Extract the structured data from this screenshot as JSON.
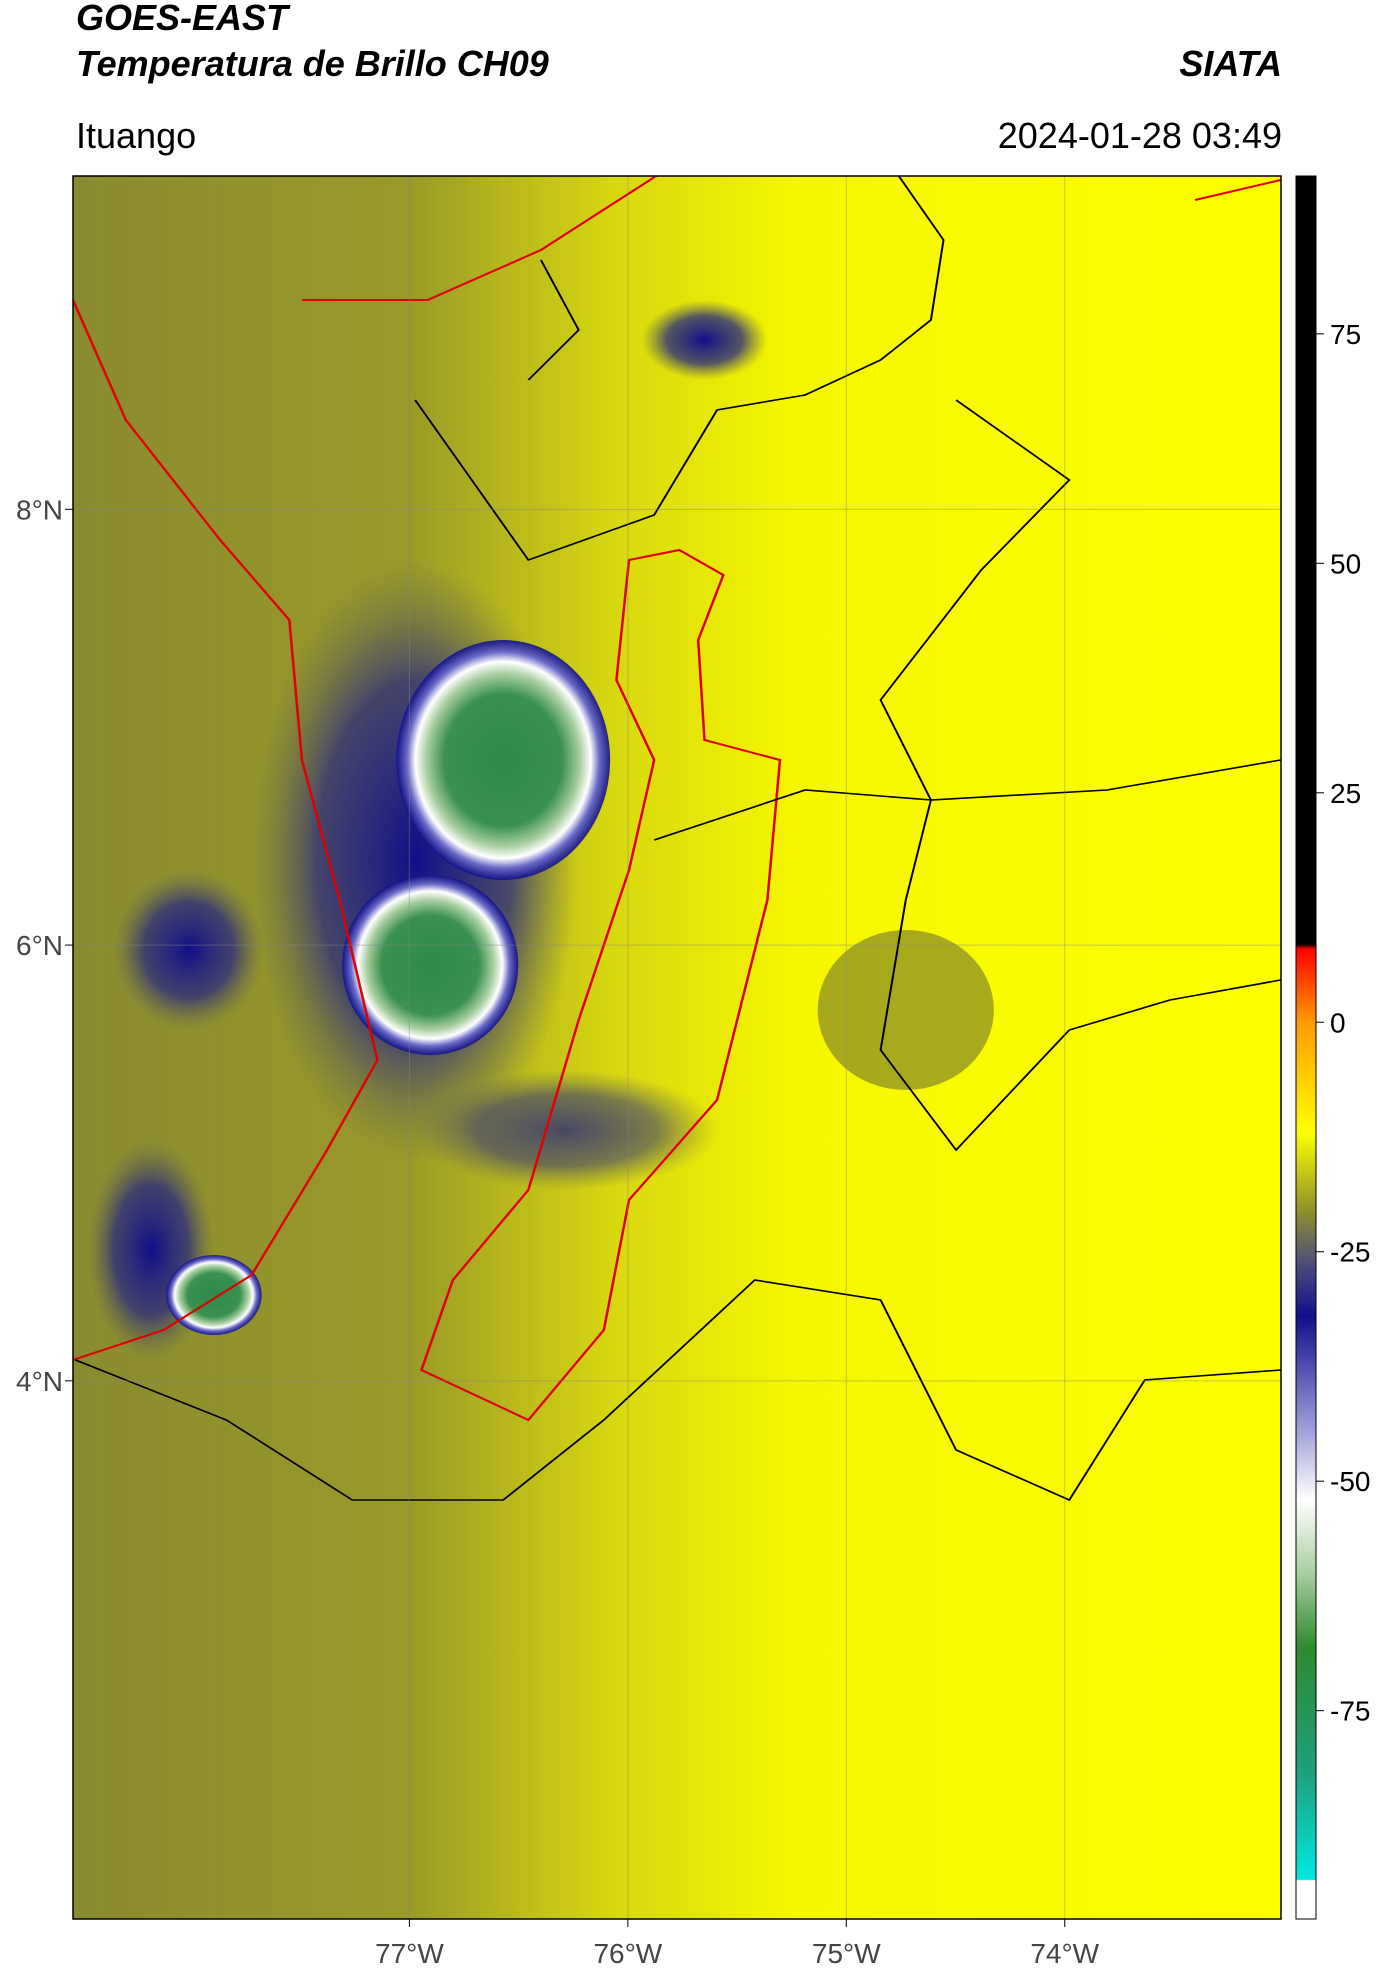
{
  "chart_data": {
    "type": "map",
    "title": "GOES-EAST",
    "subtitle": "Temperatura de Brillo CH09",
    "source": "SIATA",
    "location": "Ituango",
    "date": "2024-01-28 03:49",
    "xlim": [
      -78.54,
      -73.01
    ],
    "xticks": [
      {
        "value": -77,
        "label": "77°W"
      },
      {
        "value": -76,
        "label": "76°W"
      },
      {
        "value": -75,
        "label": "75°W"
      },
      {
        "value": -74,
        "label": "74°W"
      }
    ],
    "ylim": [
      1.53,
      9.53
    ],
    "yticks": [
      {
        "value": 4,
        "label": "4°N"
      },
      {
        "value": 6,
        "label": "6°N"
      },
      {
        "value": 8,
        "label": "8°N"
      }
    ],
    "grid": true,
    "colorbar": {
      "lim": [
        -97.7,
        92.2
      ],
      "ticks": [
        -75,
        -50,
        -25,
        0,
        25,
        50,
        75
      ],
      "stops": [
        {
          "value": -97.7,
          "color": "#ffffff"
        },
        {
          "value": -93.5,
          "color": "#ffffff"
        },
        {
          "value": -93.4,
          "color": "#00e8e0"
        },
        {
          "value": -82,
          "color": "#1fa080"
        },
        {
          "value": -68,
          "color": "#2e8b2e"
        },
        {
          "value": -60,
          "color": "#a8cfa0"
        },
        {
          "value": -52,
          "color": "#ffffff"
        },
        {
          "value": -44,
          "color": "#9a9ad8"
        },
        {
          "value": -32,
          "color": "#10108a"
        },
        {
          "value": -26,
          "color": "#50507a"
        },
        {
          "value": -21,
          "color": "#8a8a30"
        },
        {
          "value": -12,
          "color": "#ffff00"
        },
        {
          "value": 0,
          "color": "#ff9a00"
        },
        {
          "value": 8,
          "color": "#ff0000"
        },
        {
          "value": 8.5,
          "color": "#000000"
        },
        {
          "value": 92.2,
          "color": "#000000"
        }
      ]
    }
  }
}
